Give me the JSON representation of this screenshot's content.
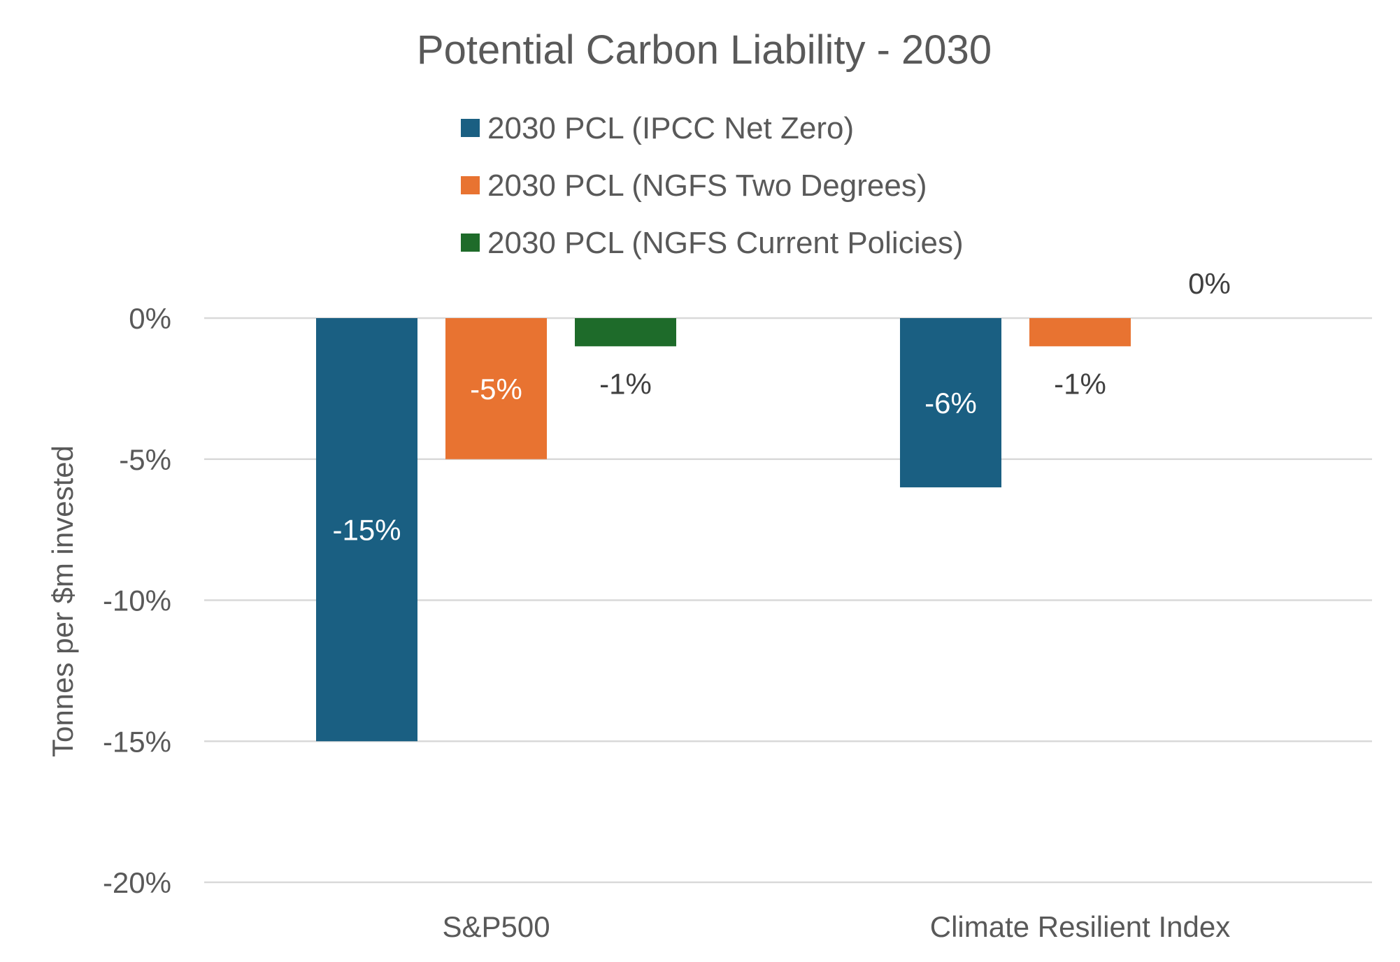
{
  "chart_data": {
    "type": "bar",
    "title": "Potential Carbon Liability - 2030",
    "ylabel": "Tonnes per $m invested",
    "xlabel": "",
    "categories": [
      "S&P500",
      "Climate Resilient Index"
    ],
    "series": [
      {
        "name": "2030 PCL (IPCC Net Zero)",
        "color": "#1a5f82",
        "values": [
          -15,
          -6
        ],
        "labels": [
          "-15%",
          "-6%"
        ]
      },
      {
        "name": "2030 PCL (NGFS Two Degrees)",
        "color": "#e87331",
        "values": [
          -5,
          -1
        ],
        "labels": [
          "-5%",
          "-1%"
        ]
      },
      {
        "name": "2030 PCL (NGFS Current Policies)",
        "color": "#1e6b2a",
        "values": [
          -1,
          0
        ],
        "labels": [
          "-1%",
          "0%"
        ]
      }
    ],
    "ylim": [
      -20,
      0
    ],
    "yticks": [
      0,
      -5,
      -10,
      -15,
      -20
    ],
    "ytick_labels": [
      "0%",
      "-5%",
      "-10%",
      "-15%",
      "-20%"
    ],
    "grid": true,
    "legend_position": "top"
  },
  "colors": {
    "text": "#595959",
    "gridline": "#d9d9d9",
    "label_inside": "#ffffff",
    "label_outside": "#404040"
  }
}
